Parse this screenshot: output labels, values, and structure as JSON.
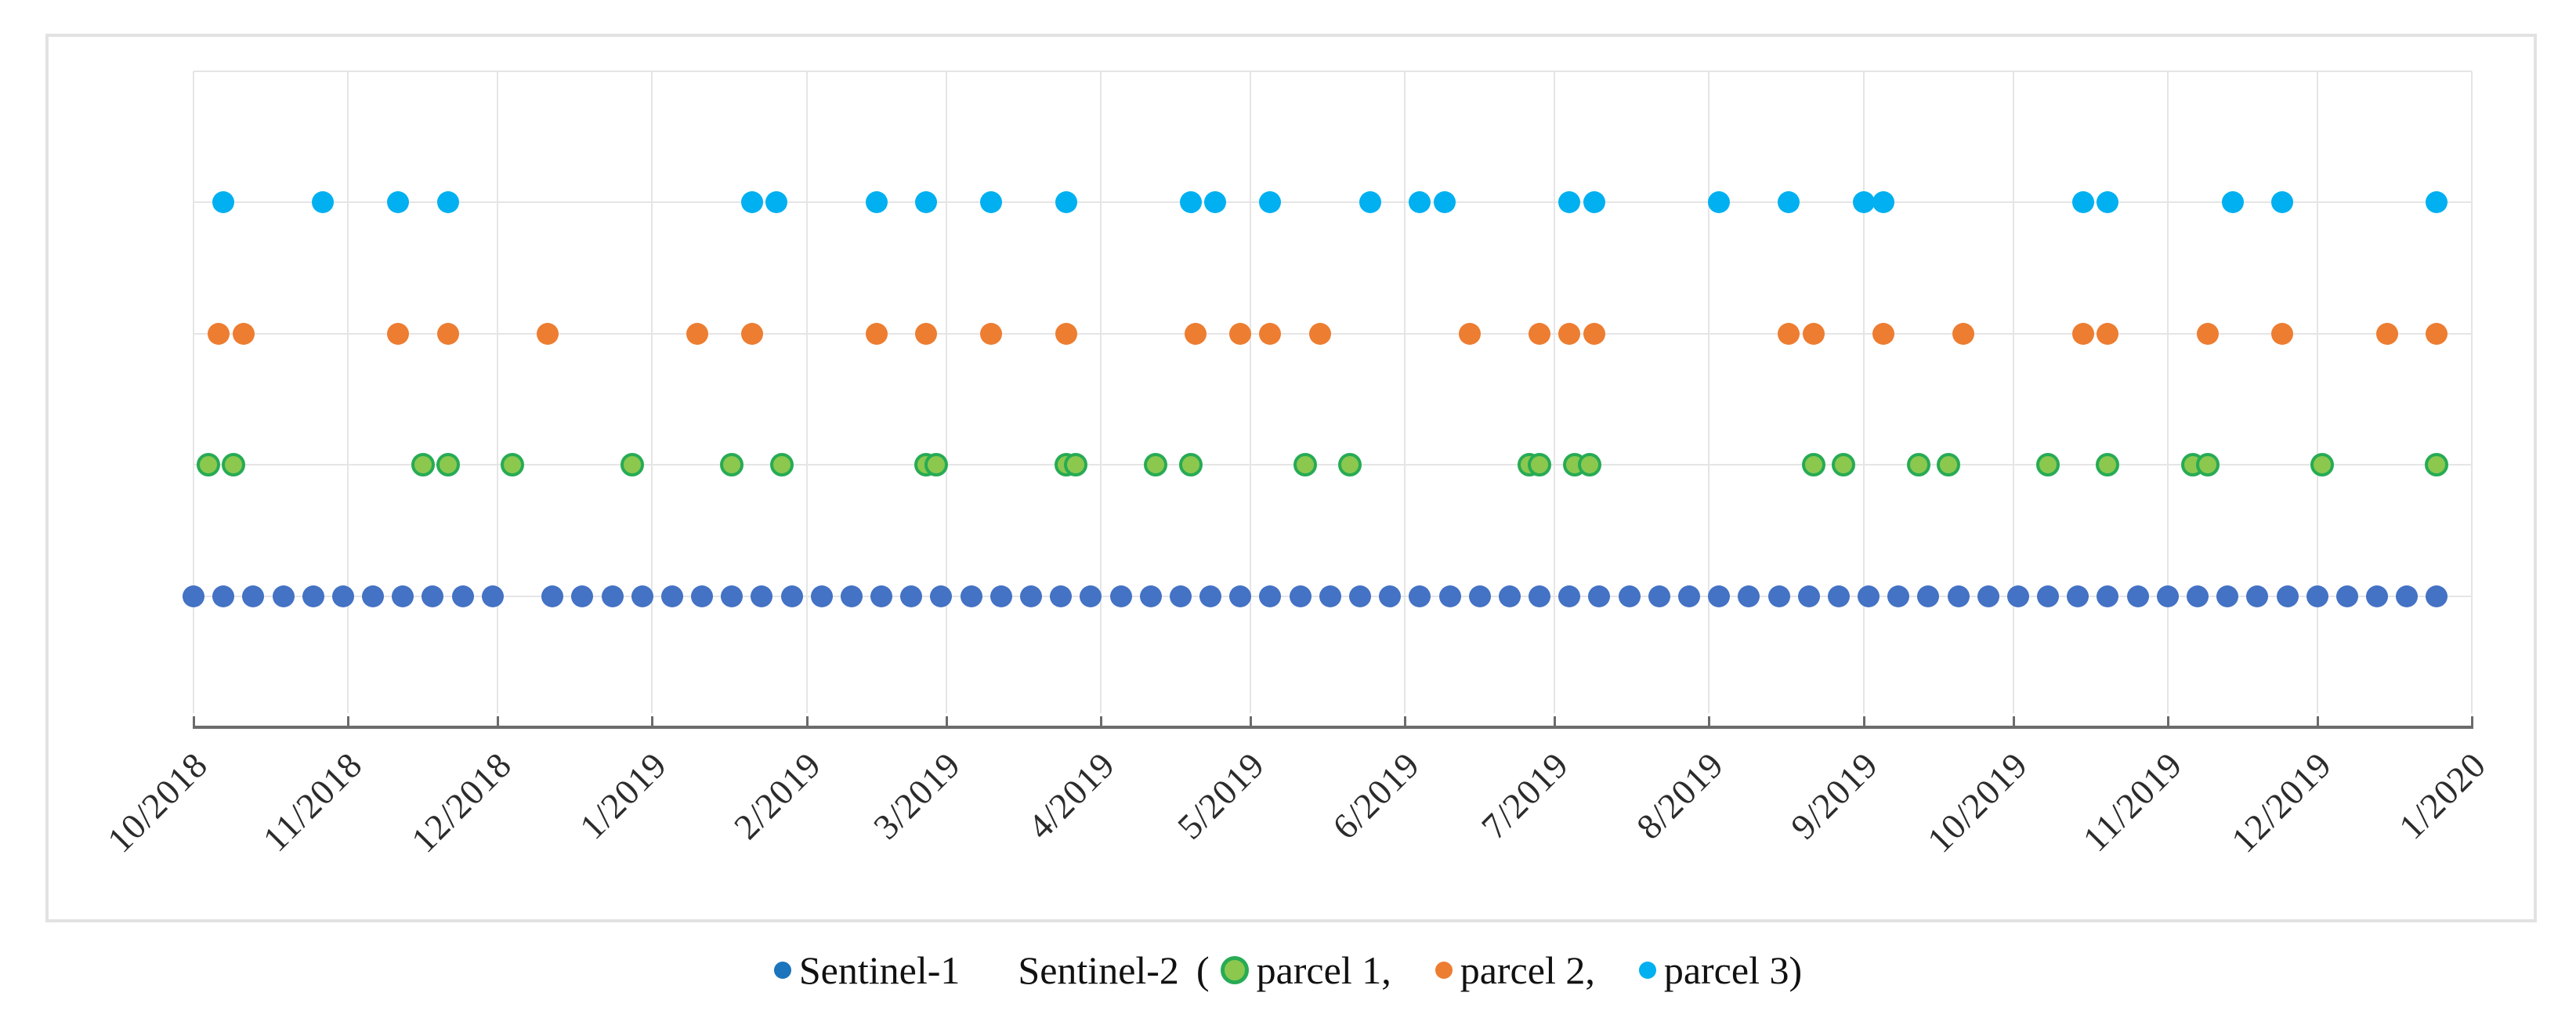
{
  "figure": {
    "background": "#ffffff",
    "border_color": "#e2e2e2"
  },
  "legend": {
    "sentinel1": {
      "label": "Sentinel-1",
      "marker_color": "#1b74bc"
    },
    "sentinel2_label": "Sentinel-2",
    "paren_open": "(",
    "items": [
      {
        "label": "parcel 1,",
        "marker_color": "#8cc84e",
        "marker_border": "#27ab55"
      },
      {
        "label": "parcel 2,",
        "marker_color": "#ed7d31",
        "marker_border": ""
      },
      {
        "label": "parcel 3)",
        "marker_color": "#00b0f0",
        "marker_border": ""
      }
    ]
  },
  "chart_data": {
    "type": "scatter",
    "title": "",
    "xlabel": "",
    "ylabel": "",
    "description": "Timeline of Sentinel-1 and Sentinel-2 acquisition dates (Oct 2018 - Jan 2020); each series drawn as a horizontal row of date markers",
    "grid": true,
    "legend_position": "bottom-center",
    "x_axis": {
      "start": "2018-10-01",
      "end": "2020-01-01",
      "ticks": [
        {
          "label": "10/2018",
          "date": "2018-10-01"
        },
        {
          "label": "11/2018",
          "date": "2018-11-01"
        },
        {
          "label": "12/2018",
          "date": "2018-12-01"
        },
        {
          "label": "1/2019",
          "date": "2019-01-01"
        },
        {
          "label": "2/2019",
          "date": "2019-02-01"
        },
        {
          "label": "3/2019",
          "date": "2019-03-01"
        },
        {
          "label": "4/2019",
          "date": "2019-04-01"
        },
        {
          "label": "5/2019",
          "date": "2019-05-01"
        },
        {
          "label": "6/2019",
          "date": "2019-06-01"
        },
        {
          "label": "7/2019",
          "date": "2019-07-01"
        },
        {
          "label": "8/2019",
          "date": "2019-08-01"
        },
        {
          "label": "9/2019",
          "date": "2019-09-01"
        },
        {
          "label": "10/2019",
          "date": "2019-10-01"
        },
        {
          "label": "11/2019",
          "date": "2019-11-01"
        },
        {
          "label": "12/2019",
          "date": "2019-12-01"
        },
        {
          "label": "1/2020",
          "date": "2020-01-01"
        }
      ],
      "axis_line_color": "#6b6b6b",
      "gridline_color": "#e5e5e5",
      "tick_label_color": "#2b2b2b",
      "tick_label_rotation_deg": -45
    },
    "y_axis": {
      "visible_labels": false,
      "rows_top_to_bottom": [
        "parcel 3",
        "parcel 2",
        "parcel 1",
        "Sentinel-1"
      ]
    },
    "series": [
      {
        "name": "Sentinel-1",
        "row": 1,
        "color": "#4472c4",
        "border_color": "",
        "marker_size": 28,
        "dates": [
          "2018-10-01",
          "2018-10-07",
          "2018-10-13",
          "2018-10-19",
          "2018-10-25",
          "2018-10-31",
          "2018-11-06",
          "2018-11-12",
          "2018-11-18",
          "2018-11-24",
          "2018-11-30",
          "2018-12-12",
          "2018-12-18",
          "2018-12-24",
          "2018-12-30",
          "2019-01-05",
          "2019-01-11",
          "2019-01-17",
          "2019-01-23",
          "2019-01-29",
          "2019-02-04",
          "2019-02-10",
          "2019-02-16",
          "2019-02-22",
          "2019-02-28",
          "2019-03-06",
          "2019-03-12",
          "2019-03-18",
          "2019-03-24",
          "2019-03-30",
          "2019-04-05",
          "2019-04-11",
          "2019-04-17",
          "2019-04-23",
          "2019-04-29",
          "2019-05-05",
          "2019-05-11",
          "2019-05-17",
          "2019-05-23",
          "2019-05-29",
          "2019-06-04",
          "2019-06-10",
          "2019-06-16",
          "2019-06-22",
          "2019-06-28",
          "2019-07-04",
          "2019-07-10",
          "2019-07-16",
          "2019-07-22",
          "2019-07-28",
          "2019-08-03",
          "2019-08-09",
          "2019-08-15",
          "2019-08-21",
          "2019-08-27",
          "2019-09-02",
          "2019-09-08",
          "2019-09-14",
          "2019-09-20",
          "2019-09-26",
          "2019-10-02",
          "2019-10-08",
          "2019-10-14",
          "2019-10-20",
          "2019-10-26",
          "2019-11-01",
          "2019-11-07",
          "2019-11-13",
          "2019-11-19",
          "2019-11-25",
          "2019-12-01",
          "2019-12-07",
          "2019-12-13",
          "2019-12-19",
          "2019-12-25"
        ]
      },
      {
        "name": "Sentinel-2 parcel 1",
        "row": 2,
        "color": "#8cc84e",
        "border_color": "#27ab55",
        "marker_size": 30,
        "dates": [
          "2018-10-04",
          "2018-10-09",
          "2018-11-16",
          "2018-11-21",
          "2018-12-04",
          "2018-12-28",
          "2019-01-17",
          "2019-01-27",
          "2019-02-25",
          "2019-02-27",
          "2019-03-25",
          "2019-03-27",
          "2019-04-12",
          "2019-04-19",
          "2019-05-12",
          "2019-05-21",
          "2019-06-26",
          "2019-06-28",
          "2019-07-05",
          "2019-07-08",
          "2019-08-22",
          "2019-08-28",
          "2019-09-12",
          "2019-09-18",
          "2019-10-08",
          "2019-10-20",
          "2019-11-06",
          "2019-11-09",
          "2019-12-02",
          "2019-12-25"
        ]
      },
      {
        "name": "Sentinel-2 parcel 2",
        "row": 3,
        "color": "#ed7d31",
        "border_color": "",
        "marker_size": 28,
        "dates": [
          "2018-10-06",
          "2018-10-11",
          "2018-11-11",
          "2018-11-21",
          "2018-12-11",
          "2019-01-10",
          "2019-01-21",
          "2019-02-15",
          "2019-02-25",
          "2019-03-10",
          "2019-03-25",
          "2019-04-20",
          "2019-04-29",
          "2019-05-05",
          "2019-05-15",
          "2019-06-14",
          "2019-06-28",
          "2019-07-04",
          "2019-07-09",
          "2019-08-17",
          "2019-08-22",
          "2019-09-05",
          "2019-09-21",
          "2019-10-15",
          "2019-10-20",
          "2019-11-09",
          "2019-11-24",
          "2019-12-15",
          "2019-12-25"
        ]
      },
      {
        "name": "Sentinel-2 parcel 3",
        "row": 4,
        "color": "#00b0f0",
        "border_color": "",
        "marker_size": 28,
        "dates": [
          "2018-10-07",
          "2018-10-27",
          "2018-11-11",
          "2018-11-21",
          "2019-01-21",
          "2019-01-26",
          "2019-02-15",
          "2019-02-25",
          "2019-03-10",
          "2019-03-25",
          "2019-04-19",
          "2019-04-24",
          "2019-05-05",
          "2019-05-25",
          "2019-06-04",
          "2019-06-09",
          "2019-07-04",
          "2019-07-09",
          "2019-08-03",
          "2019-08-17",
          "2019-09-01",
          "2019-09-05",
          "2019-10-15",
          "2019-10-20",
          "2019-11-14",
          "2019-11-24",
          "2019-12-25"
        ]
      }
    ]
  }
}
